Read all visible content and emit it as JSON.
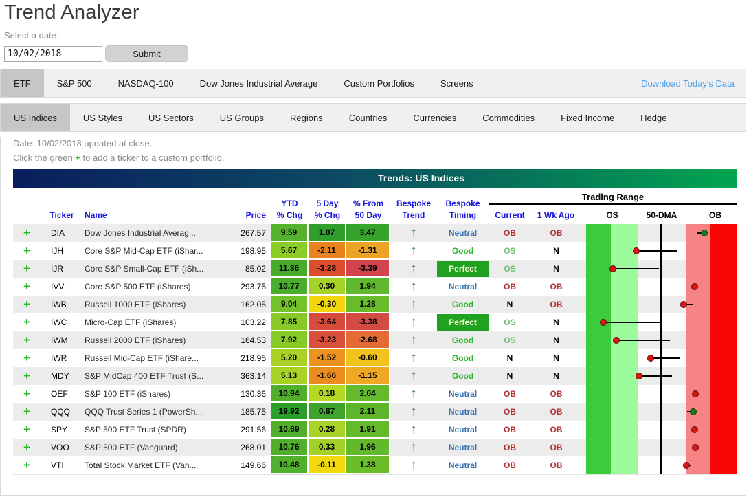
{
  "page": {
    "title": "Trend Analyzer",
    "select_date_label": "Select a date:",
    "date_value": "10/02/2018",
    "submit_label": "Submit"
  },
  "tabs_primary": {
    "items": [
      "ETF",
      "S&P 500",
      "NASDAQ-100",
      "Dow Jones Industrial Average",
      "Custom Portfolios",
      "Screens"
    ],
    "active": "ETF",
    "download_link": "Download Today's Data"
  },
  "tabs_secondary": {
    "items": [
      "US Indices",
      "US Styles",
      "US Sectors",
      "US Groups",
      "Regions",
      "Countries",
      "Currencies",
      "Commodities",
      "Fixed Income",
      "Hedge"
    ],
    "active": "US Indices"
  },
  "info": {
    "date_line": "Date: 10/02/2018 updated at close.",
    "click_prefix": "Click the green ",
    "click_plus": "+",
    "click_suffix": " to add a ticker to a custom portfolio."
  },
  "table": {
    "title": "Trends: US Indices",
    "headers": {
      "ticker": "Ticker",
      "name": "Name",
      "price": "Price",
      "ytd": [
        "YTD",
        "% Chg"
      ],
      "five_day": [
        "5 Day",
        "% Chg"
      ],
      "from50": [
        "% From",
        "50 Day"
      ],
      "trend": [
        "Bespoke",
        "Trend"
      ],
      "timing": [
        "Bespoke",
        "Timing"
      ],
      "trading_range": "Trading Range",
      "current": "Current",
      "wk_ago": "1 Wk Ago",
      "os": "OS",
      "dma": "50-DMA",
      "ob": "OB"
    },
    "rows": [
      {
        "ticker": "DIA",
        "name": "Dow Jones Industrial Averag...",
        "price": "267.57",
        "ytd": "9.59",
        "ytd_bg": "#54b22d",
        "d5": "1.07",
        "d5_bg": "#2f9e2b",
        "f50": "3.47",
        "f50_bg": "#35a32c",
        "trend": "up",
        "timing": "Neutral",
        "current": "OB",
        "wk_ago": "OB",
        "range": {
          "dot": 179,
          "dot_color": "green",
          "tail_to": 169
        }
      },
      {
        "ticker": "IJH",
        "name": "Core S&P Mid-Cap ETF (iShar...",
        "price": "198.95",
        "ytd": "5.67",
        "ytd_bg": "#8ccc27",
        "d5": "-2.11",
        "d5_bg": "#e8831d",
        "f50": "-1.31",
        "f50_bg": "#eca426",
        "trend": "up",
        "timing": "Good",
        "current": "OS",
        "wk_ago": "N",
        "range": {
          "dot": 80,
          "dot_color": "red",
          "tail_to": 139
        }
      },
      {
        "ticker": "IJR",
        "name": "Core S&P Small-Cap ETF (iSh...",
        "price": "85.02",
        "ytd": "11.36",
        "ytd_bg": "#47ac2b",
        "d5": "-3.28",
        "d5_bg": "#dd4e2e",
        "f50": "-3.39",
        "f50_bg": "#d2434f",
        "trend": "up",
        "timing": "Perfect",
        "current": "OS",
        "wk_ago": "N",
        "range": {
          "dot": 46,
          "dot_color": "red",
          "tail_to": 113
        }
      },
      {
        "ticker": "IVV",
        "name": "Core S&P 500 ETF (iShares)",
        "price": "293.75",
        "ytd": "10.77",
        "ytd_bg": "#4aad2b",
        "d5": "0.30",
        "d5_bg": "#a6d228",
        "f50": "1.94",
        "f50_bg": "#60b82c",
        "trend": "up",
        "timing": "Neutral",
        "current": "OB",
        "wk_ago": "OB",
        "range": {
          "dot": 165,
          "dot_color": "red",
          "tail_to": null
        }
      },
      {
        "ticker": "IWB",
        "name": "Russell 1000 ETF (iShares)",
        "price": "162.05",
        "ytd": "9.04",
        "ytd_bg": "#73c22a",
        "d5": "-0.30",
        "d5_bg": "#f2d70f",
        "f50": "1.28",
        "f50_bg": "#68bc2b",
        "trend": "up",
        "timing": "Good",
        "current": "N",
        "wk_ago": "OB",
        "range": {
          "dot": 149,
          "dot_color": "red",
          "tail_to": 162
        }
      },
      {
        "ticker": "IWC",
        "name": "Micro-Cap ETF (iShares)",
        "price": "103.22",
        "ytd": "7.85",
        "ytd_bg": "#87ca28",
        "d5": "-3.64",
        "d5_bg": "#d74b3c",
        "f50": "-3.38",
        "f50_bg": "#d34c44",
        "trend": "up",
        "timing": "Perfect",
        "current": "OS",
        "wk_ago": "N",
        "range": {
          "dot": 32,
          "dot_color": "red",
          "tail_to": 115
        }
      },
      {
        "ticker": "IWM",
        "name": "Russell 2000 ETF (iShares)",
        "price": "164.53",
        "ytd": "7.92",
        "ytd_bg": "#87ca28",
        "d5": "-3.23",
        "d5_bg": "#d8503c",
        "f50": "-2.68",
        "f50_bg": "#e36b36",
        "trend": "up",
        "timing": "Good",
        "current": "OS",
        "wk_ago": "N",
        "range": {
          "dot": 51,
          "dot_color": "red",
          "tail_to": 129
        }
      },
      {
        "ticker": "IWR",
        "name": "Russell Mid-Cap ETF (iShare...",
        "price": "218.95",
        "ytd": "5.20",
        "ytd_bg": "#a8d226",
        "d5": "-1.52",
        "d5_bg": "#ec9220",
        "f50": "-0.60",
        "f50_bg": "#f1c31c",
        "trend": "up",
        "timing": "Good",
        "current": "N",
        "wk_ago": "N",
        "range": {
          "dot": 101,
          "dot_color": "red",
          "tail_to": 143
        }
      },
      {
        "ticker": "MDY",
        "name": "S&P MidCap 400 ETF Trust (S...",
        "price": "363.14",
        "ytd": "5.13",
        "ytd_bg": "#a8d226",
        "d5": "-1.66",
        "d5_bg": "#eb8d1e",
        "f50": "-1.15",
        "f50_bg": "#efa824",
        "trend": "up",
        "timing": "Good",
        "current": "N",
        "wk_ago": "N",
        "range": {
          "dot": 84,
          "dot_color": "red",
          "tail_to": 132
        }
      },
      {
        "ticker": "OEF",
        "name": "S&P 100 ETF (iShares)",
        "price": "130.36",
        "ytd": "10.94",
        "ytd_bg": "#50b02c",
        "d5": "0.18",
        "d5_bg": "#b5d822",
        "f50": "2.04",
        "f50_bg": "#64ba2b",
        "trend": "up",
        "timing": "Neutral",
        "current": "OB",
        "wk_ago": "OB",
        "range": {
          "dot": 166,
          "dot_color": "red",
          "tail_to": null
        }
      },
      {
        "ticker": "QQQ",
        "name": "QQQ Trust Series 1 (PowerSh...",
        "price": "185.75",
        "ytd": "19.92",
        "ytd_bg": "#2e9e2b",
        "d5": "0.87",
        "d5_bg": "#3ea42c",
        "f50": "2.11",
        "f50_bg": "#5cb52b",
        "trend": "up",
        "timing": "Neutral",
        "current": "OB",
        "wk_ago": "OB",
        "range": {
          "dot": 163,
          "dot_color": "green",
          "tail_to": 154
        }
      },
      {
        "ticker": "SPY",
        "name": "S&P 500 ETF Trust (SPDR)",
        "price": "291.56",
        "ytd": "10.69",
        "ytd_bg": "#50b02c",
        "d5": "0.28",
        "d5_bg": "#a8d327",
        "f50": "1.91",
        "f50_bg": "#65ba2b",
        "trend": "up",
        "timing": "Neutral",
        "current": "OB",
        "wk_ago": "OB",
        "range": {
          "dot": 165,
          "dot_color": "red",
          "tail_to": null
        }
      },
      {
        "ticker": "VOO",
        "name": "S&P 500 ETF (Vanguard)",
        "price": "268.01",
        "ytd": "10.76",
        "ytd_bg": "#50b02c",
        "d5": "0.33",
        "d5_bg": "#a4d128",
        "f50": "1.96",
        "f50_bg": "#62b92b",
        "trend": "up",
        "timing": "Neutral",
        "current": "OB",
        "wk_ago": "OB",
        "range": {
          "dot": 166,
          "dot_color": "red",
          "tail_to": null
        }
      },
      {
        "ticker": "VTI",
        "name": "Total Stock Market ETF (Van...",
        "price": "149.66",
        "ytd": "10.48",
        "ytd_bg": "#52b12c",
        "d5": "-0.11",
        "d5_bg": "#f2d80e",
        "f50": "1.38",
        "f50_bg": "#6cbd2a",
        "trend": "up",
        "timing": "Neutral",
        "current": "OB",
        "wk_ago": "OB",
        "range": {
          "dot": 153,
          "dot_color": "red",
          "tail_to": 160
        }
      }
    ]
  },
  "colors": {
    "band_os": "#3bcc3b",
    "band_os_light": "#9cfc9c",
    "band_ob_light": "#f78484",
    "band_ob": "#f90606",
    "dot_red": "#dd1515",
    "dot_green": "#1b7a1b",
    "perfect_bg": "#1fa21f",
    "good_text": "#2db52d",
    "neutral_text": "#3a72b0",
    "ob_text": "#b03030",
    "os_text": "#6cc26c",
    "header_blue": "#1515dd",
    "download_link": "#4a9fe8",
    "plus_green": "#2eb82e",
    "arrow_green": "#267e26",
    "title_gradient_left": "#0a1e5e",
    "title_gradient_right": "#00a550"
  }
}
